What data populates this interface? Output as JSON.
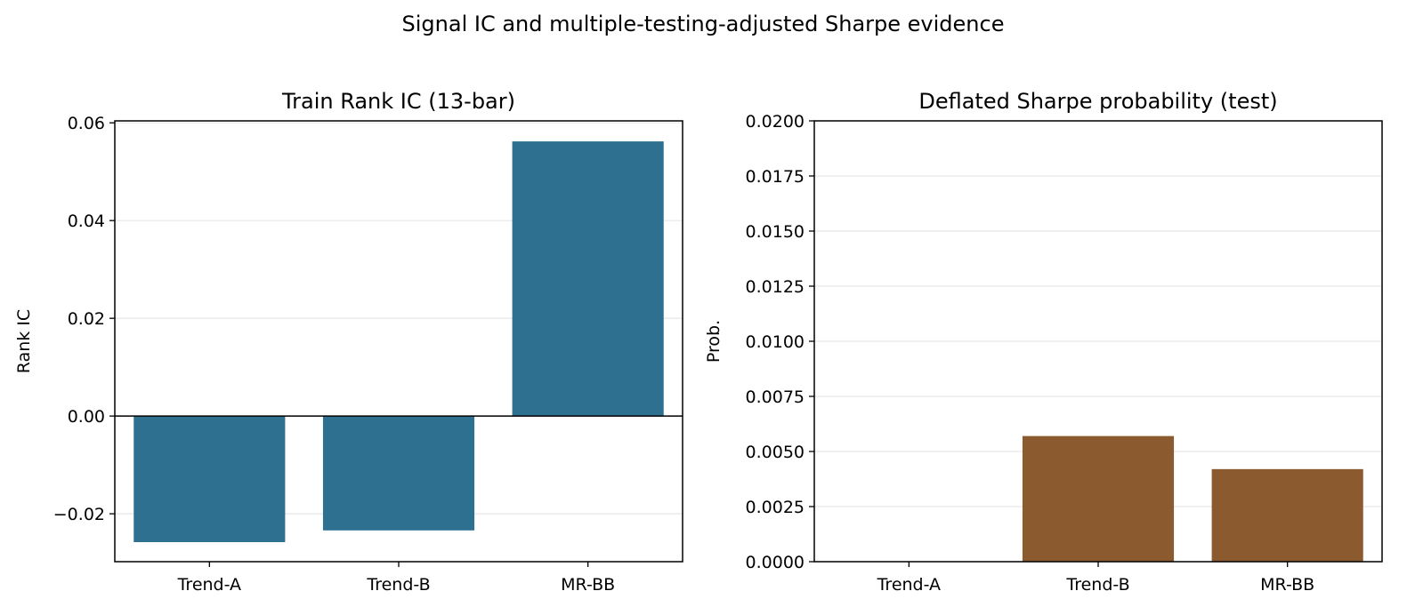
{
  "figure": {
    "title": "Signal IC and multiple-testing-adjusted Sharpe evidence"
  },
  "chart_data": [
    {
      "type": "bar",
      "title": "Train Rank IC (13-bar)",
      "xlabel": "",
      "ylabel": "Rank IC",
      "categories": [
        "Trend-A",
        "Trend-B",
        "MR-BB"
      ],
      "values": [
        -0.0258,
        -0.0234,
        0.0562
      ],
      "ylim": [
        -0.0298,
        0.0604
      ],
      "yticks": [
        -0.02,
        0.0,
        0.02,
        0.04,
        0.06
      ],
      "ytick_labels": [
        "−0.02",
        "0.00",
        "0.02",
        "0.04",
        "0.06"
      ],
      "grid": "y",
      "zero_line": true,
      "bar_color": "#2e7090"
    },
    {
      "type": "bar",
      "title": "Deflated Sharpe probability (test)",
      "xlabel": "",
      "ylabel": "Prob.",
      "categories": [
        "Trend-A",
        "Trend-B",
        "MR-BB"
      ],
      "values": [
        0.0,
        0.0057,
        0.0042
      ],
      "ylim": [
        0.0,
        0.02
      ],
      "yticks": [
        0.0,
        0.0025,
        0.005,
        0.0075,
        0.01,
        0.0125,
        0.015,
        0.0175,
        0.02
      ],
      "ytick_labels": [
        "0.0000",
        "0.0025",
        "0.0050",
        "0.0075",
        "0.0100",
        "0.0125",
        "0.0150",
        "0.0175",
        "0.0200"
      ],
      "grid": "y",
      "zero_line": false,
      "bar_color": "#8b5a2f"
    }
  ]
}
